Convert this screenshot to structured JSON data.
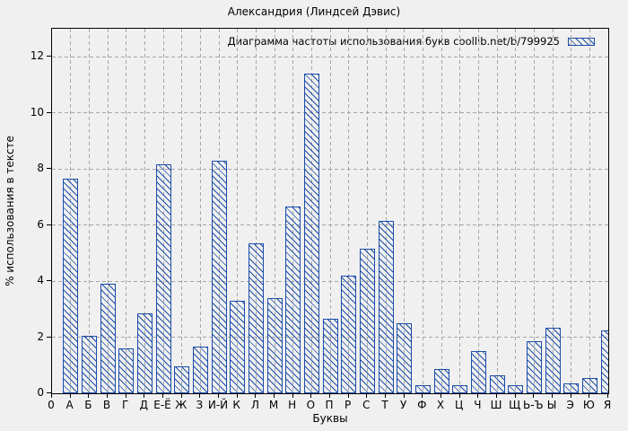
{
  "figure": {
    "background": "#f0f0f0",
    "frame_color": "#000000",
    "grid_color": "#a6a6a6"
  },
  "chart_data": {
    "type": "bar",
    "title": "Александрия (Линдсей Дэвис)",
    "legend": {
      "label": "Диаграмма частоты использования букв coollib.net/b/799925",
      "position": "top-right-inside",
      "swatch": "blue-diagonal-hatch"
    },
    "xlabel": "Буквы",
    "ylabel": "% использования в тексте",
    "origin_tick_label": "0",
    "categories": [
      "А",
      "Б",
      "В",
      "Г",
      "Д",
      "Е-Ё",
      "Ж",
      "З",
      "И-Й",
      "К",
      "Л",
      "М",
      "Н",
      "О",
      "П",
      "Р",
      "С",
      "Т",
      "У",
      "Ф",
      "Х",
      "Ц",
      "Ч",
      "Ш",
      "Щ",
      "Ь-Ъ",
      "Ы",
      "Э",
      "Ю",
      "Я"
    ],
    "values": [
      7.65,
      2.05,
      3.9,
      1.6,
      2.85,
      8.15,
      0.95,
      1.65,
      8.3,
      3.3,
      5.35,
      3.4,
      6.65,
      11.4,
      2.65,
      4.2,
      5.15,
      6.15,
      2.5,
      0.3,
      0.85,
      0.3,
      1.5,
      0.65,
      0.3,
      1.85,
      2.35,
      0.35,
      0.55,
      2.25
    ],
    "yticks": [
      0,
      2,
      4,
      6,
      8,
      10,
      12
    ],
    "ylim": [
      0,
      13
    ],
    "grid": true,
    "bar_color": "#1b4da8",
    "hatch": "diagonal-down"
  }
}
